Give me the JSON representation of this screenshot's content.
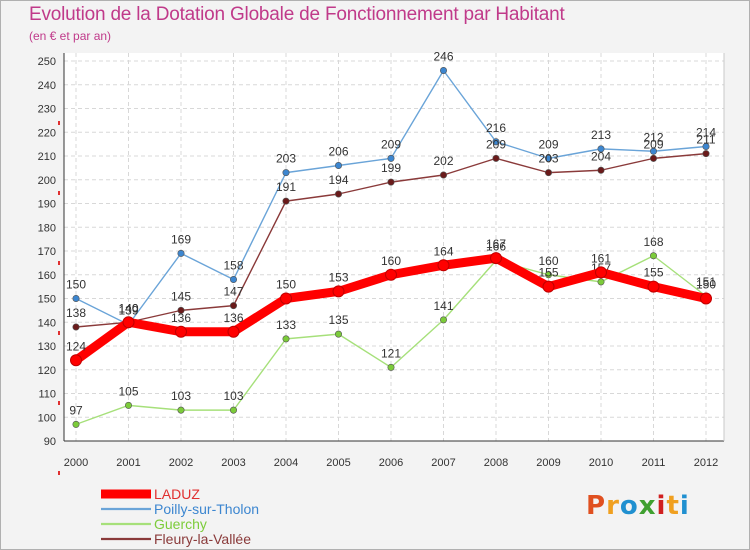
{
  "chart_data": {
    "type": "line",
    "title": "Evolution de la Dotation Globale de Fonctionnement par Habitant",
    "subtitle": "(en € et par an)",
    "x": [
      "2000",
      "2001",
      "2002",
      "2003",
      "2004",
      "2005",
      "2006",
      "2007",
      "2008",
      "2009",
      "2010",
      "2011",
      "2012"
    ],
    "ylim": [
      90,
      250
    ],
    "yticks": [
      90,
      100,
      110,
      120,
      130,
      140,
      150,
      160,
      170,
      180,
      190,
      200,
      210,
      220,
      230,
      240,
      250
    ],
    "grid": true,
    "legend_position": "bottom-left",
    "series": [
      {
        "name": "LADUZ",
        "color": "#ff0000",
        "marker": "#ff0000",
        "values": [
          124,
          140,
          136,
          136,
          150,
          153,
          160,
          164,
          167,
          155,
          161,
          155,
          150
        ]
      },
      {
        "name": "Poilly-sur-Tholon",
        "color": "#6aa4d8",
        "marker": "#3c86d0",
        "values": [
          150,
          139,
          169,
          158,
          203,
          206,
          209,
          246,
          216,
          209,
          213,
          212,
          214
        ]
      },
      {
        "name": "Guerchy",
        "color": "#a6e07a",
        "marker": "#7ccc3a",
        "values": [
          97,
          105,
          103,
          103,
          133,
          135,
          121,
          141,
          166,
          160,
          157,
          168,
          151
        ]
      },
      {
        "name": "Fleury-la-Vallée",
        "color": "#8a3a3a",
        "marker": "#6a1a1a",
        "values": [
          138,
          140,
          145,
          147,
          191,
          194,
          199,
          202,
          209,
          203,
          204,
          209,
          211
        ]
      }
    ]
  },
  "logo": {
    "letters": [
      "P",
      "r",
      "o",
      "x",
      "i",
      "t",
      "i"
    ],
    "colors": [
      "#e05020",
      "#f0a020",
      "#2090d0",
      "#40a030",
      "#d02020",
      "#f0a020",
      "#2090d0"
    ]
  }
}
